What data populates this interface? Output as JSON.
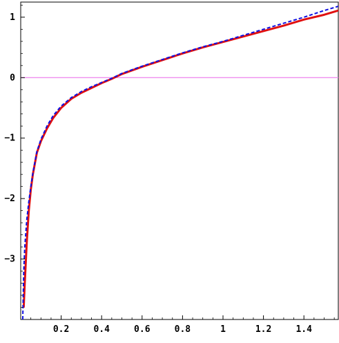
{
  "chart_data": {
    "type": "line",
    "title": "",
    "xlabel": "",
    "ylabel": "",
    "xlim": [
      0.0,
      1.57
    ],
    "ylim": [
      -4.0,
      1.25
    ],
    "grid": false,
    "x_ticks": [
      {
        "value": 0.2,
        "label": "0.2"
      },
      {
        "value": 0.4,
        "label": "0.4"
      },
      {
        "value": 0.6,
        "label": "0.6"
      },
      {
        "value": 0.8,
        "label": "0.8"
      },
      {
        "value": 1.0,
        "label": "1"
      },
      {
        "value": 1.2,
        "label": "1.2"
      },
      {
        "value": 1.4,
        "label": "1.4"
      }
    ],
    "y_ticks": [
      {
        "value": 1,
        "label": "1"
      },
      {
        "value": 0,
        "label": "0"
      },
      {
        "value": -1,
        "label": "−1"
      },
      {
        "value": -2,
        "label": "−2"
      },
      {
        "value": -3,
        "label": "−3"
      }
    ],
    "reference_lines": [
      {
        "y": 0,
        "color": "#ee82ee"
      }
    ],
    "series": [
      {
        "color": "#e01010",
        "style": "solid",
        "points": [
          [
            0.015,
            -3.79
          ],
          [
            0.02,
            -3.4
          ],
          [
            0.03,
            -2.72
          ],
          [
            0.04,
            -2.2
          ],
          [
            0.05,
            -1.85
          ],
          [
            0.06,
            -1.6
          ],
          [
            0.08,
            -1.24
          ],
          [
            0.1,
            -1.05
          ],
          [
            0.13,
            -0.84
          ],
          [
            0.16,
            -0.67
          ],
          [
            0.2,
            -0.5
          ],
          [
            0.25,
            -0.35
          ],
          [
            0.3,
            -0.25
          ],
          [
            0.35,
            -0.17
          ],
          [
            0.4,
            -0.09
          ],
          [
            0.45,
            -0.02
          ],
          [
            0.5,
            0.06
          ],
          [
            0.6,
            0.18
          ],
          [
            0.7,
            0.29
          ],
          [
            0.8,
            0.4
          ],
          [
            0.9,
            0.5
          ],
          [
            1.0,
            0.59
          ],
          [
            1.1,
            0.68
          ],
          [
            1.2,
            0.77
          ],
          [
            1.3,
            0.86
          ],
          [
            1.4,
            0.96
          ],
          [
            1.5,
            1.04
          ],
          [
            1.57,
            1.11
          ]
        ]
      },
      {
        "color": "#1010e0",
        "style": "dashed",
        "points": [
          [
            0.01,
            -4.0
          ],
          [
            0.015,
            -3.2
          ],
          [
            0.02,
            -2.8
          ],
          [
            0.03,
            -2.35
          ],
          [
            0.04,
            -2.05
          ],
          [
            0.05,
            -1.8
          ],
          [
            0.06,
            -1.58
          ],
          [
            0.08,
            -1.22
          ],
          [
            0.1,
            -1.02
          ],
          [
            0.13,
            -0.8
          ],
          [
            0.16,
            -0.63
          ],
          [
            0.2,
            -0.47
          ],
          [
            0.25,
            -0.33
          ],
          [
            0.3,
            -0.23
          ],
          [
            0.35,
            -0.15
          ],
          [
            0.4,
            -0.08
          ],
          [
            0.45,
            -0.01
          ],
          [
            0.5,
            0.07
          ],
          [
            0.6,
            0.19
          ],
          [
            0.7,
            0.3
          ],
          [
            0.8,
            0.41
          ],
          [
            0.9,
            0.51
          ],
          [
            1.0,
            0.6
          ],
          [
            1.1,
            0.7
          ],
          [
            1.2,
            0.8
          ],
          [
            1.3,
            0.9
          ],
          [
            1.4,
            1.0
          ],
          [
            1.5,
            1.11
          ],
          [
            1.57,
            1.18
          ]
        ]
      }
    ]
  }
}
